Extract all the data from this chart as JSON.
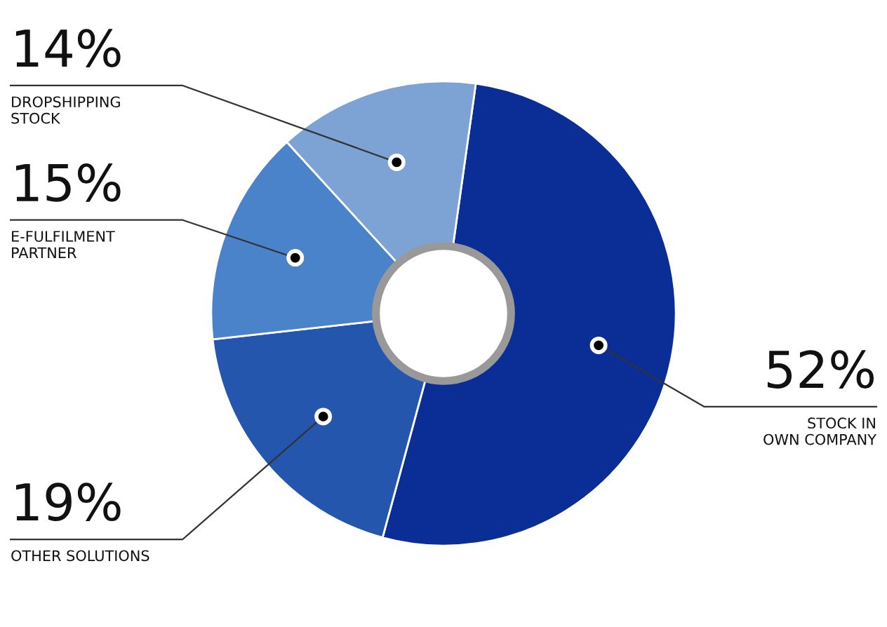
{
  "chart_data": {
    "type": "donut",
    "categories": [
      "STOCK IN\nOWN COMPANY",
      "OTHER SOLUTIONS",
      "E-FULFILMENT\nPARTNER",
      "DROPSHIPPING\nSTOCK"
    ],
    "values": [
      52,
      19,
      15,
      14
    ],
    "value_labels": [
      "52%",
      "19%",
      "15%",
      "14%"
    ],
    "colors": [
      "#0a2d96",
      "#2456ae",
      "#4a83c9",
      "#7ca3d4"
    ]
  }
}
